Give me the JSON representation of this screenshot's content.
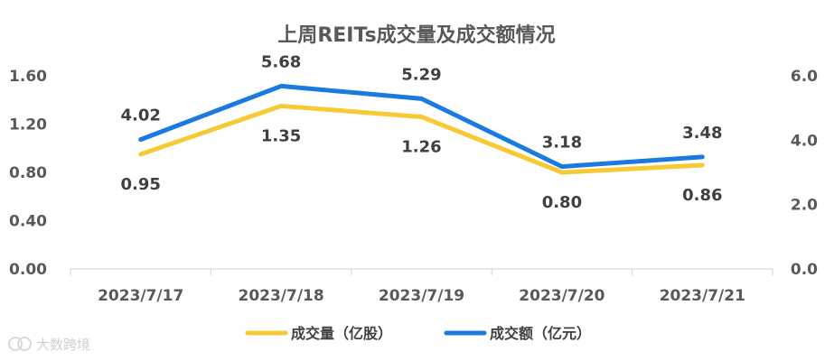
{
  "chart_data": {
    "type": "line",
    "title": "上周REITs成交量及成交额情况",
    "categories": [
      "2023/7/17",
      "2023/7/18",
      "2023/7/19",
      "2023/7/20",
      "2023/7/21"
    ],
    "series": [
      {
        "name": "成交量（亿股）",
        "axis": "left",
        "color": "#F7C934",
        "values": [
          0.95,
          1.35,
          1.26,
          0.8,
          0.86
        ],
        "labels": [
          "0.95",
          "1.35",
          "1.26",
          "0.80",
          "0.86"
        ]
      },
      {
        "name": "成交额（亿元）",
        "axis": "right",
        "color": "#1A7AE0",
        "values": [
          4.02,
          5.68,
          5.29,
          3.18,
          3.48
        ],
        "labels": [
          "4.02",
          "5.68",
          "5.29",
          "3.18",
          "3.48"
        ]
      }
    ],
    "y_left": {
      "ylim": [
        0,
        1.6
      ],
      "ticks": [
        0,
        0.4,
        0.8,
        1.2,
        1.6
      ],
      "tick_labels": [
        "0.00",
        "0.40",
        "0.80",
        "1.20",
        "1.60"
      ]
    },
    "y_right": {
      "ylim": [
        0,
        6
      ],
      "ticks": [
        0,
        2,
        4,
        6
      ],
      "tick_labels": [
        "0.0",
        "2.0",
        "4.0",
        "6.0"
      ]
    },
    "grid": false,
    "legend_position": "bottom-center"
  },
  "watermark": "大数跨境"
}
